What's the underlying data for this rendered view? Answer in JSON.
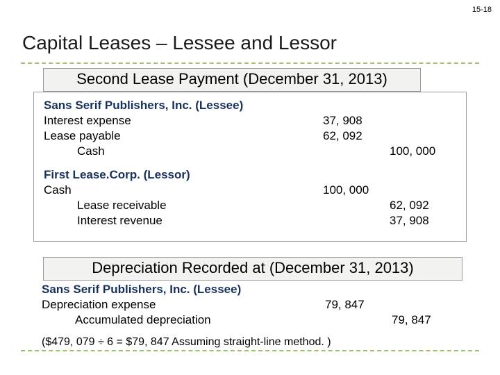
{
  "page_number": "15-18",
  "title": "Capital Leases – Lessee and Lessor",
  "section1": {
    "heading": "Second Lease Payment (December 31, 2013)",
    "lessee": {
      "company": "Sans Serif Publishers, Inc. (Lessee)",
      "lines": [
        {
          "account": "Interest expense",
          "debit": "37, 908",
          "credit": ""
        },
        {
          "account": "Lease payable",
          "debit": "62, 092",
          "credit": ""
        },
        {
          "account": "Cash",
          "indent": true,
          "debit": "",
          "credit": "100, 000"
        }
      ]
    },
    "lessor": {
      "company": "First Lease.Corp. (Lessor)",
      "lines": [
        {
          "account": "Cash",
          "debit": "100, 000",
          "credit": ""
        },
        {
          "account": "Lease receivable",
          "indent": true,
          "debit": "",
          "credit": "62, 092"
        },
        {
          "account": "Interest revenue",
          "indent": true,
          "debit": "",
          "credit": "37, 908"
        }
      ]
    }
  },
  "section2": {
    "heading": "Depreciation Recorded at (December 31, 2013)",
    "company": "Sans Serif Publishers, Inc. (Lessee)",
    "lines": [
      {
        "account": "Depreciation expense",
        "debit": "79, 847",
        "credit": ""
      },
      {
        "account": "Accumulated depreciation",
        "indent": true,
        "debit": "",
        "credit": "79, 847"
      }
    ],
    "note": "($479, 079 ÷ 6 = $79, 847 Assuming straight-line method. )"
  },
  "colors": {
    "dash": "#9fbf6f",
    "company_text": "#18315c",
    "box_bg": "#f2f2f0",
    "border": "#999999"
  }
}
